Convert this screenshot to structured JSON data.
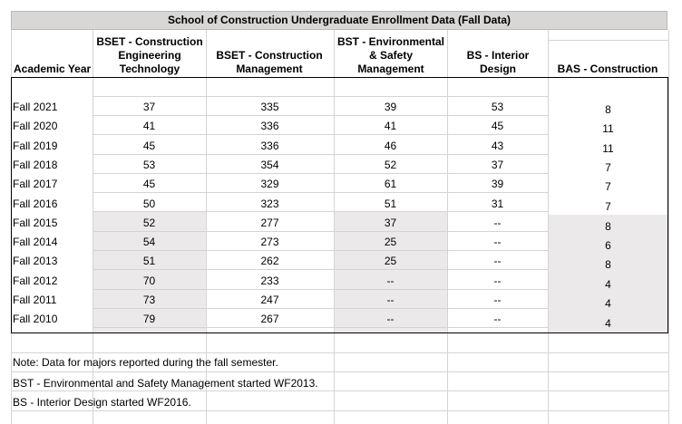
{
  "table": {
    "title": "School of Construction Undergraduate Enrollment Data (Fall Data)",
    "headers": {
      "year": "Academic Year",
      "bset_cet": "BSET - Construction Engineering Technology",
      "bset_cm": "BSET - Construction Management",
      "bst_esm": "BST - Environmental & Safety Management",
      "bs_id": "BS - Interior Design",
      "bas_c": "BAS - Construction"
    },
    "rows": [
      {
        "year": "Fall 2021",
        "bset_cet": "37",
        "bset_cm": "335",
        "bst_esm": "39",
        "bs_id": "53",
        "bas_c": "8"
      },
      {
        "year": "Fall 2020",
        "bset_cet": "41",
        "bset_cm": "336",
        "bst_esm": "41",
        "bs_id": "45",
        "bas_c": "11"
      },
      {
        "year": "Fall 2019",
        "bset_cet": "45",
        "bset_cm": "336",
        "bst_esm": "46",
        "bs_id": "43",
        "bas_c": "11"
      },
      {
        "year": "Fall 2018",
        "bset_cet": "53",
        "bset_cm": "354",
        "bst_esm": "52",
        "bs_id": "37",
        "bas_c": "7"
      },
      {
        "year": "Fall 2017",
        "bset_cet": "45",
        "bset_cm": "329",
        "bst_esm": "61",
        "bs_id": "39",
        "bas_c": "7"
      },
      {
        "year": "Fall 2016",
        "bset_cet": "50",
        "bset_cm": "323",
        "bst_esm": "51",
        "bs_id": "31",
        "bas_c": "7"
      },
      {
        "year": "Fall 2015",
        "bset_cet": "52",
        "bset_cm": "277",
        "bst_esm": "37",
        "bs_id": "--",
        "bas_c": "8"
      },
      {
        "year": "Fall 2014",
        "bset_cet": "54",
        "bset_cm": "273",
        "bst_esm": "25",
        "bs_id": "--",
        "bas_c": "6"
      },
      {
        "year": "Fall 2013",
        "bset_cet": "51",
        "bset_cm": "262",
        "bst_esm": "25",
        "bs_id": "--",
        "bas_c": "8"
      },
      {
        "year": "Fall 2012",
        "bset_cet": "70",
        "bset_cm": "233",
        "bst_esm": "--",
        "bs_id": "--",
        "bas_c": "4"
      },
      {
        "year": "Fall 2011",
        "bset_cet": "73",
        "bset_cm": "247",
        "bst_esm": "--",
        "bs_id": "--",
        "bas_c": "4"
      },
      {
        "year": "Fall 2010",
        "bset_cet": "79",
        "bset_cm": "267",
        "bst_esm": "--",
        "bs_id": "--",
        "bas_c": "4"
      }
    ],
    "notes": [
      "Note: Data for majors reported during the fall semester.",
      "BST - Environmental and Safety Management started WF2013.",
      "BS - Interior Design started WF2016."
    ],
    "colors": {
      "title_bg": "#d9d6d6",
      "shade": "#ebe9e9",
      "grid": "#d4d4d4"
    }
  }
}
